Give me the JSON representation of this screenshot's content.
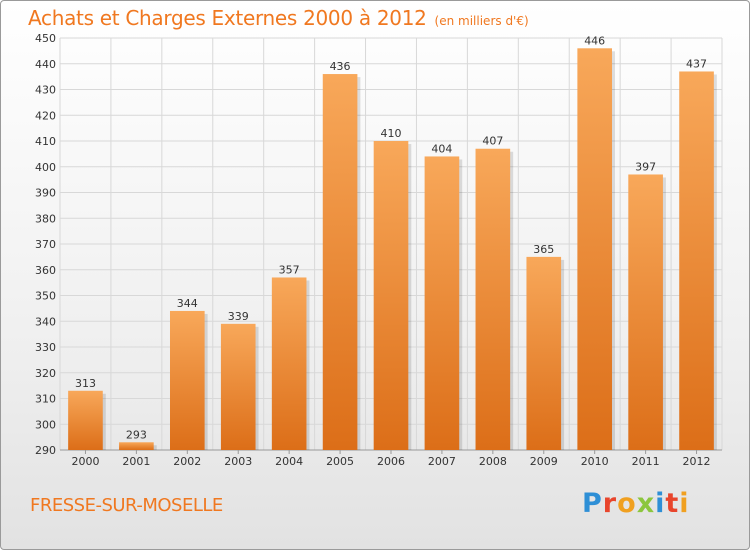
{
  "title": "Achats et Charges Externes 2000 à 2012",
  "unit_label": "(en milliers d'€)",
  "location": "FRESSE-SUR-MOSELLE",
  "logo": {
    "text": "Proxiti",
    "letters": [
      {
        "char": "P",
        "color": "#2e8fd6"
      },
      {
        "char": "r",
        "color": "#e8452c"
      },
      {
        "char": "o",
        "color": "#f0a020"
      },
      {
        "char": "x",
        "color": "#8cc63e"
      },
      {
        "char": "i",
        "color": "#2e8fd6"
      },
      {
        "char": "t",
        "color": "#e8452c"
      },
      {
        "char": "i",
        "color": "#f0a020"
      }
    ]
  },
  "colors": {
    "bar_light": "#f8a85a",
    "bar_dark": "#dc6e18",
    "accent": "#f07820",
    "grid": "#d8d8d8"
  },
  "chart_data": {
    "type": "bar",
    "title": "Achats et Charges Externes 2000 à 2012",
    "categories": [
      "2000",
      "2001",
      "2002",
      "2003",
      "2004",
      "2005",
      "2006",
      "2007",
      "2008",
      "2009",
      "2010",
      "2011",
      "2012"
    ],
    "values": [
      313,
      293,
      344,
      339,
      357,
      436,
      410,
      404,
      407,
      365,
      446,
      397,
      437
    ],
    "ylim": [
      290,
      450
    ],
    "yticks": [
      290,
      300,
      310,
      320,
      330,
      340,
      350,
      360,
      370,
      380,
      390,
      400,
      410,
      420,
      430,
      440,
      450
    ],
    "grid": true,
    "data_labels": true
  }
}
